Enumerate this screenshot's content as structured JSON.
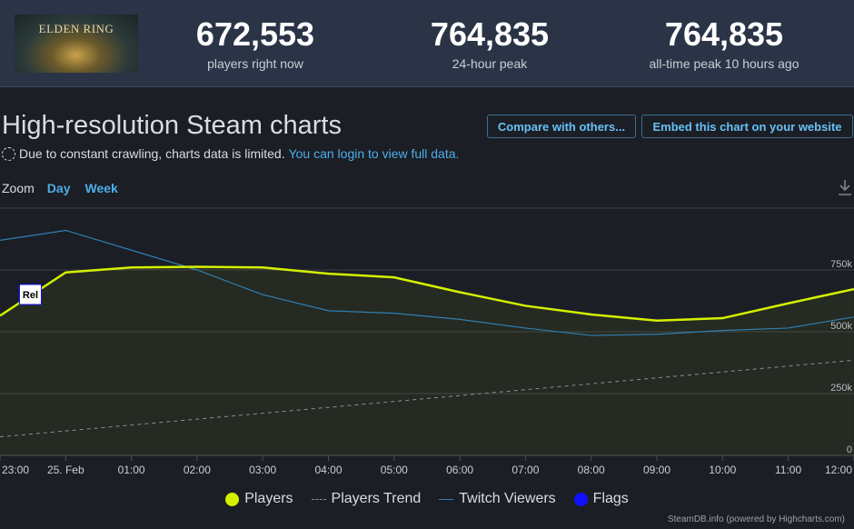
{
  "header": {
    "logo_text": "ELDEN RING",
    "stats": [
      {
        "value": "672,553",
        "label": "players right now"
      },
      {
        "value": "764,835",
        "label": "24-hour peak"
      },
      {
        "value": "764,835",
        "label": "all-time peak 10 hours ago"
      }
    ]
  },
  "page": {
    "title": "High-resolution Steam charts",
    "compare_button": "Compare with others...",
    "embed_button": "Embed this chart on your website",
    "notice_text": "Due to constant crawling, charts data is limited.",
    "notice_link": "You can login to view full data.",
    "zoom_label": "Zoom",
    "zoom_options": [
      "Day",
      "Week"
    ]
  },
  "colors": {
    "players": "#d4f000",
    "trend": "#8a8f97",
    "twitch": "#2f7fb3",
    "flags": "#1010ff",
    "grid": "#3a3f48"
  },
  "chart_data": {
    "type": "line",
    "x_ticks": [
      "23:00",
      "25. Feb",
      "01:00",
      "02:00",
      "03:00",
      "04:00",
      "05:00",
      "06:00",
      "07:00",
      "08:00",
      "09:00",
      "10:00",
      "11:00",
      "12:00"
    ],
    "ylim": [
      0,
      1000000
    ],
    "y_ticks": [
      0,
      250000,
      500000,
      750000
    ],
    "y_tick_labels": [
      "0",
      "250k",
      "500k",
      "750k"
    ],
    "grid": true,
    "legend_position": "bottom",
    "series": [
      {
        "name": "Players",
        "x_hours": [
          0,
          1,
          2,
          3,
          4,
          5,
          6,
          7,
          8,
          9,
          10,
          11,
          12,
          13
        ],
        "values": [
          565000,
          740000,
          760000,
          763000,
          760000,
          735000,
          720000,
          660000,
          605000,
          570000,
          545000,
          555000,
          615000,
          672553
        ]
      },
      {
        "name": "Players Trend",
        "x_hours": [
          0,
          13
        ],
        "values": [
          75000,
          385000
        ]
      },
      {
        "name": "Twitch Viewers",
        "x_hours": [
          0,
          1,
          2,
          3,
          4,
          5,
          6,
          7,
          8,
          9,
          10,
          11,
          12,
          13
        ],
        "values": [
          870000,
          910000,
          830000,
          750000,
          650000,
          585000,
          575000,
          550000,
          515000,
          485000,
          490000,
          505000,
          515000,
          560000
        ]
      },
      {
        "name": "Flags",
        "markers": [
          {
            "x_hours": 0.2,
            "label": "Rel"
          }
        ]
      }
    ]
  },
  "credits": "SteamDB.info (powered by Highcharts.com)"
}
